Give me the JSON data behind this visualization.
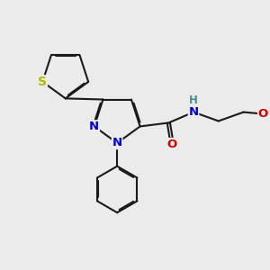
{
  "bg_color": "#ebebeb",
  "bond_color": "#1a1a1a",
  "bond_width": 1.5,
  "atom_colors": {
    "S": "#b8b800",
    "N": "#0000cc",
    "O": "#cc0000",
    "H": "#4a8f8f",
    "C": "#1a1a1a"
  },
  "font_size": 9.5,
  "fig_size": [
    3.0,
    3.0
  ],
  "dpi": 100
}
